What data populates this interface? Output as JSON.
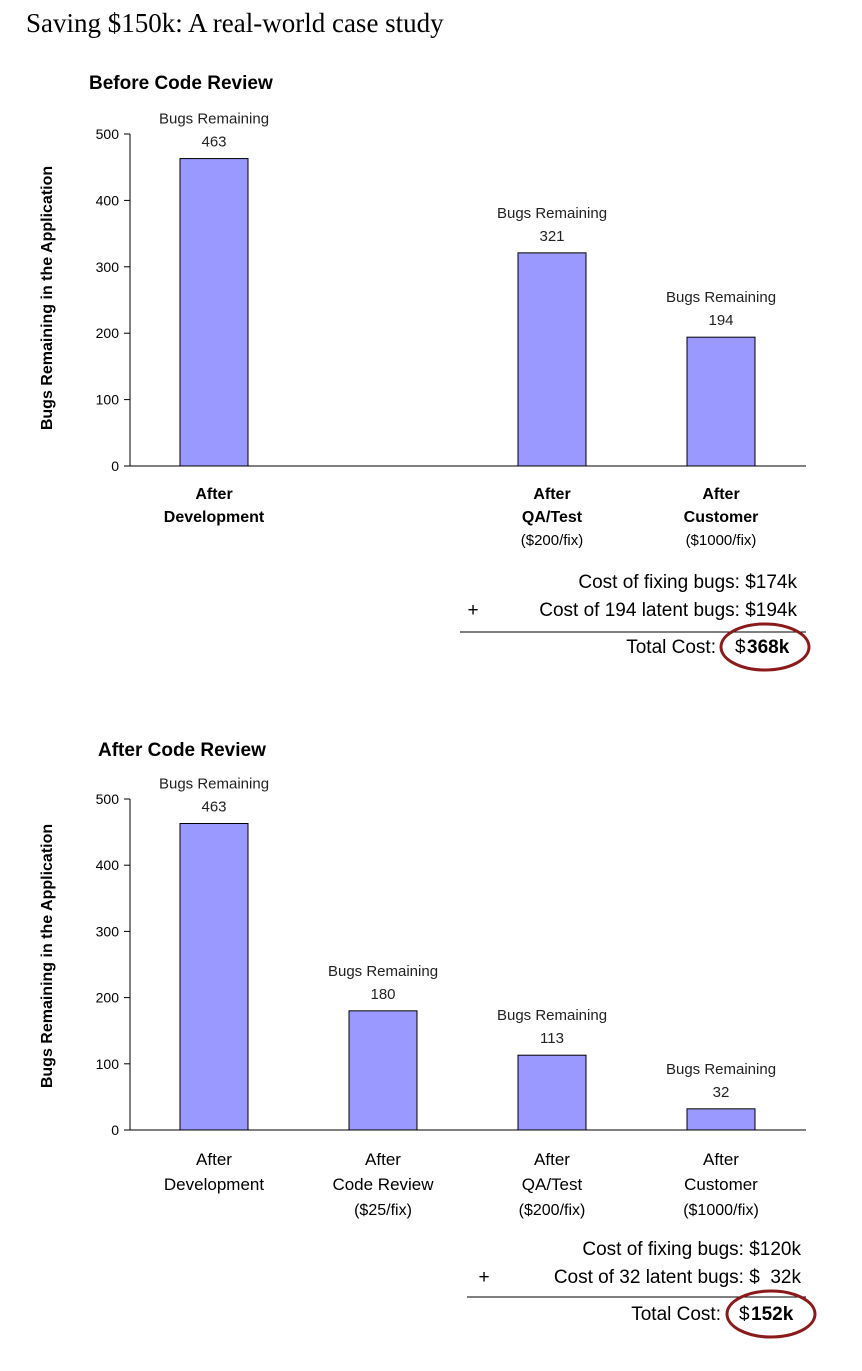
{
  "page_title": "Saving $150k: A real-world case study",
  "colors": {
    "bar_fill": "#9999FF",
    "bar_stroke": "#000000",
    "circle": "#8B1A1A"
  },
  "chart_data": [
    {
      "type": "bar",
      "title": "Before Code Review",
      "xlabel": "",
      "ylabel": "Bugs Remaining in the Application",
      "ylim": [
        0,
        500
      ],
      "yticks": [
        0,
        100,
        200,
        300,
        400,
        500
      ],
      "grid": false,
      "categories": [
        [
          "After",
          "Development"
        ],
        [],
        [
          "After",
          "QA/Test",
          "($200/fix)"
        ],
        [
          "After",
          "Customer",
          "($1000/fix)"
        ]
      ],
      "values": [
        463,
        null,
        321,
        194
      ],
      "bar_annotation": "Bugs Remaining",
      "cost": {
        "line1": "Cost of fixing bugs: $174k",
        "plus": "+",
        "line2": "Cost of 194 latent bugs: $194k",
        "total_label": "Total Cost:",
        "total_currency": "$",
        "total_value": "368k"
      }
    },
    {
      "type": "bar",
      "title": "After Code Review",
      "xlabel": "",
      "ylabel": "Bugs Remaining in the Application",
      "ylim": [
        0,
        500
      ],
      "yticks": [
        0,
        100,
        200,
        300,
        400,
        500
      ],
      "grid": false,
      "categories": [
        [
          "After",
          "Development"
        ],
        [
          "After",
          "Code Review",
          "($25/fix)"
        ],
        [
          "After",
          "QA/Test",
          "($200/fix)"
        ],
        [
          "After",
          "Customer",
          "($1000/fix)"
        ]
      ],
      "values": [
        463,
        180,
        113,
        32
      ],
      "bar_annotation": "Bugs Remaining",
      "cost": {
        "line1": "Cost of fixing bugs: $120k",
        "plus": "+",
        "line2": "Cost of 32 latent bugs: $  32k",
        "total_label": "Total Cost:",
        "total_currency": "$",
        "total_value": "152k"
      }
    }
  ]
}
